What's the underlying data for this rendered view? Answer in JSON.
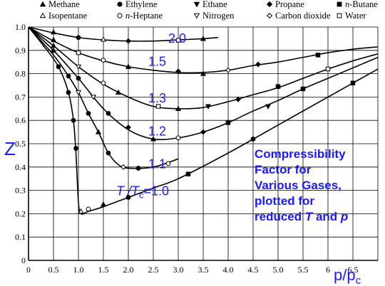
{
  "chart_data": {
    "type": "scatter",
    "title": "",
    "xlabel": "p/pc",
    "ylabel": "Z",
    "xlim": [
      0,
      7.0
    ],
    "ylim": [
      0,
      1.0
    ],
    "xticks": [
      "0",
      "0.5",
      "1.0",
      "1.5",
      "2.0",
      "2.5",
      "3.0",
      "3.5",
      "4.0",
      "4.5",
      "5.0",
      "5.5",
      "6",
      "6.5"
    ],
    "yticks": [
      "0",
      "0.1",
      "0.2",
      "0.3",
      "0.4",
      "0.5",
      "0.6",
      "0.7",
      "0.8",
      "0.9",
      "1.0"
    ],
    "grid": true,
    "legend_position": "top",
    "legend": [
      {
        "name": "Methane",
        "marker": "triangle-up-filled"
      },
      {
        "name": "Ethylene",
        "marker": "circle-filled"
      },
      {
        "name": "Ethane",
        "marker": "triangle-down-filled"
      },
      {
        "name": "Propane",
        "marker": "diamond-filled"
      },
      {
        "name": "n-Butane",
        "marker": "square-filled"
      },
      {
        "name": "Isopentane",
        "marker": "triangle-up-open"
      },
      {
        "name": "n-Heptane",
        "marker": "circle-open"
      },
      {
        "name": "Nitrogen",
        "marker": "triangle-down-open"
      },
      {
        "name": "Carbon dioxide",
        "marker": "diamond-open"
      },
      {
        "name": "Water",
        "marker": "square-open"
      }
    ],
    "curves": [
      {
        "label": "2.0",
        "points": [
          [
            0,
            1.0
          ],
          [
            0.5,
            0.975
          ],
          [
            1.0,
            0.955
          ],
          [
            1.5,
            0.945
          ],
          [
            2.0,
            0.94
          ],
          [
            2.5,
            0.94
          ],
          [
            3.0,
            0.945
          ],
          [
            3.5,
            0.95
          ],
          [
            3.8,
            0.955
          ]
        ]
      },
      {
        "label": "1.5",
        "points": [
          [
            0,
            1.0
          ],
          [
            0.5,
            0.94
          ],
          [
            1.0,
            0.89
          ],
          [
            1.5,
            0.855
          ],
          [
            2.0,
            0.83
          ],
          [
            2.5,
            0.815
          ],
          [
            3.0,
            0.805
          ],
          [
            3.5,
            0.805
          ],
          [
            4.0,
            0.815
          ],
          [
            4.5,
            0.835
          ],
          [
            5.0,
            0.85
          ],
          [
            5.5,
            0.87
          ],
          [
            6.0,
            0.89
          ],
          [
            6.5,
            0.905
          ],
          [
            7.0,
            0.915
          ]
        ]
      },
      {
        "label": "1.3",
        "points": [
          [
            0,
            1.0
          ],
          [
            0.5,
            0.92
          ],
          [
            1.0,
            0.83
          ],
          [
            1.5,
            0.755
          ],
          [
            2.0,
            0.7
          ],
          [
            2.5,
            0.66
          ],
          [
            3.0,
            0.65
          ],
          [
            3.5,
            0.655
          ],
          [
            4.0,
            0.68
          ],
          [
            4.5,
            0.71
          ],
          [
            5.0,
            0.74
          ],
          [
            5.5,
            0.78
          ],
          [
            6.0,
            0.82
          ],
          [
            6.5,
            0.855
          ],
          [
            7.0,
            0.885
          ]
        ]
      },
      {
        "label": "1.2",
        "points": [
          [
            0,
            1.0
          ],
          [
            0.5,
            0.9
          ],
          [
            1.0,
            0.78
          ],
          [
            1.5,
            0.65
          ],
          [
            2.0,
            0.56
          ],
          [
            2.5,
            0.52
          ],
          [
            3.0,
            0.525
          ],
          [
            3.5,
            0.55
          ],
          [
            4.0,
            0.59
          ],
          [
            4.5,
            0.64
          ],
          [
            5.0,
            0.685
          ],
          [
            5.5,
            0.735
          ],
          [
            6.0,
            0.78
          ],
          [
            6.5,
            0.825
          ],
          [
            7.0,
            0.87
          ]
        ]
      },
      {
        "label": "1.1",
        "points": [
          [
            0,
            1.0
          ],
          [
            0.5,
            0.88
          ],
          [
            0.8,
            0.79
          ],
          [
            1.0,
            0.72
          ],
          [
            1.2,
            0.63
          ],
          [
            1.4,
            0.55
          ],
          [
            1.6,
            0.46
          ],
          [
            1.8,
            0.41
          ],
          [
            2.0,
            0.395
          ],
          [
            2.5,
            0.4
          ],
          [
            3.0,
            0.435
          ]
        ]
      },
      {
        "label": "T /Tc=1.0",
        "points": [
          [
            0,
            1.0
          ],
          [
            0.3,
            0.92
          ],
          [
            0.6,
            0.83
          ],
          [
            0.8,
            0.72
          ],
          [
            0.9,
            0.6
          ],
          [
            0.95,
            0.46
          ],
          [
            1.0,
            0.25
          ],
          [
            1.05,
            0.2
          ],
          [
            1.2,
            0.21
          ],
          [
            1.5,
            0.23
          ],
          [
            2.0,
            0.27
          ],
          [
            2.5,
            0.31
          ],
          [
            3.0,
            0.35
          ],
          [
            4.0,
            0.46
          ],
          [
            5.0,
            0.58
          ],
          [
            6.0,
            0.7
          ],
          [
            7.0,
            0.82
          ]
        ]
      }
    ],
    "curve_labels": [
      {
        "text": "2.0",
        "x": 2.8,
        "y": 0.955
      },
      {
        "text": "1.5",
        "x": 2.4,
        "y": 0.855
      },
      {
        "text": "1.3",
        "x": 2.4,
        "y": 0.698
      },
      {
        "text": "1.2",
        "x": 2.4,
        "y": 0.556
      },
      {
        "text": "1.1",
        "x": 2.4,
        "y": 0.416
      }
    ],
    "t_label": {
      "t": "T /T",
      "c": "c",
      "eq": "=1.0",
      "x": 2.3,
      "y": 0.3
    },
    "annotation": [
      "Compressibility",
      "Factor for",
      "Various Gases,",
      "plotted for",
      "reduced T and p"
    ],
    "markers": [
      {
        "s": "tri-f",
        "x": 0.5,
        "y": 0.978
      },
      {
        "s": "cir-f",
        "x": 1.0,
        "y": 0.955
      },
      {
        "s": "tri-o",
        "x": 1.5,
        "y": 0.947
      },
      {
        "s": "dia-f",
        "x": 2.0,
        "y": 0.94
      },
      {
        "s": "sq-o",
        "x": 3.0,
        "y": 0.943
      },
      {
        "s": "tri-f",
        "x": 3.5,
        "y": 0.95
      },
      {
        "s": "tri-f",
        "x": 0.5,
        "y": 0.945
      },
      {
        "s": "sq-o",
        "x": 1.0,
        "y": 0.89
      },
      {
        "s": "cir-o",
        "x": 1.5,
        "y": 0.858
      },
      {
        "s": "tri-f",
        "x": 2.0,
        "y": 0.83
      },
      {
        "s": "dia-f",
        "x": 3.0,
        "y": 0.81
      },
      {
        "s": "tri-f",
        "x": 3.5,
        "y": 0.8
      },
      {
        "s": "dia-o",
        "x": 4.0,
        "y": 0.815
      },
      {
        "s": "dia-f",
        "x": 4.6,
        "y": 0.84
      },
      {
        "s": "sq-f",
        "x": 5.8,
        "y": 0.88
      },
      {
        "s": "tri-f",
        "x": 0.5,
        "y": 0.92
      },
      {
        "s": "tri-d-o",
        "x": 1.0,
        "y": 0.83
      },
      {
        "s": "cir-o",
        "x": 1.5,
        "y": 0.76
      },
      {
        "s": "tri-f",
        "x": 1.8,
        "y": 0.72
      },
      {
        "s": "sq-o",
        "x": 2.6,
        "y": 0.66
      },
      {
        "s": "tri-f",
        "x": 3.0,
        "y": 0.65
      },
      {
        "s": "tri-d-f",
        "x": 3.6,
        "y": 0.66
      },
      {
        "s": "dia-f",
        "x": 4.2,
        "y": 0.69
      },
      {
        "s": "sq-f",
        "x": 5.0,
        "y": 0.745
      },
      {
        "s": "sq-o",
        "x": 6.0,
        "y": 0.82
      },
      {
        "s": "tri-f",
        "x": 0.5,
        "y": 0.9
      },
      {
        "s": "cir-f",
        "x": 1.0,
        "y": 0.78
      },
      {
        "s": "tri-d-o",
        "x": 1.3,
        "y": 0.7
      },
      {
        "s": "cir-f",
        "x": 1.6,
        "y": 0.63
      },
      {
        "s": "dia-f",
        "x": 2.0,
        "y": 0.57
      },
      {
        "s": "tri-f",
        "x": 2.5,
        "y": 0.52
      },
      {
        "s": "cir-o",
        "x": 3.0,
        "y": 0.525
      },
      {
        "s": "dia-f",
        "x": 3.5,
        "y": 0.55
      },
      {
        "s": "sq-f",
        "x": 4.0,
        "y": 0.59
      },
      {
        "s": "tri-d-f",
        "x": 4.8,
        "y": 0.66
      },
      {
        "s": "sq-f",
        "x": 5.5,
        "y": 0.735
      },
      {
        "s": "cir-f",
        "x": 0.8,
        "y": 0.79
      },
      {
        "s": "tri-d-o",
        "x": 1.0,
        "y": 0.72
      },
      {
        "s": "cir-f",
        "x": 1.2,
        "y": 0.63
      },
      {
        "s": "tri-f",
        "x": 1.4,
        "y": 0.55
      },
      {
        "s": "cir-f",
        "x": 1.6,
        "y": 0.46
      },
      {
        "s": "dia-o",
        "x": 1.9,
        "y": 0.4
      },
      {
        "s": "cir-f",
        "x": 2.2,
        "y": 0.395
      },
      {
        "s": "cir-o",
        "x": 2.8,
        "y": 0.415
      },
      {
        "s": "cir-f",
        "x": 0.6,
        "y": 0.83
      },
      {
        "s": "cir-f",
        "x": 0.8,
        "y": 0.72
      },
      {
        "s": "cir-f",
        "x": 0.9,
        "y": 0.6
      },
      {
        "s": "cir-f",
        "x": 0.95,
        "y": 0.48
      },
      {
        "s": "tri-o",
        "x": 1.05,
        "y": 0.21
      },
      {
        "s": "cir-o",
        "x": 1.2,
        "y": 0.22
      },
      {
        "s": "tri-f",
        "x": 1.5,
        "y": 0.24
      },
      {
        "s": "cir-f",
        "x": 2.0,
        "y": 0.27
      },
      {
        "s": "sq-f",
        "x": 3.2,
        "y": 0.37
      },
      {
        "s": "cir-f",
        "x": 4.5,
        "y": 0.52
      },
      {
        "s": "sq-f",
        "x": 6.5,
        "y": 0.76
      }
    ]
  }
}
